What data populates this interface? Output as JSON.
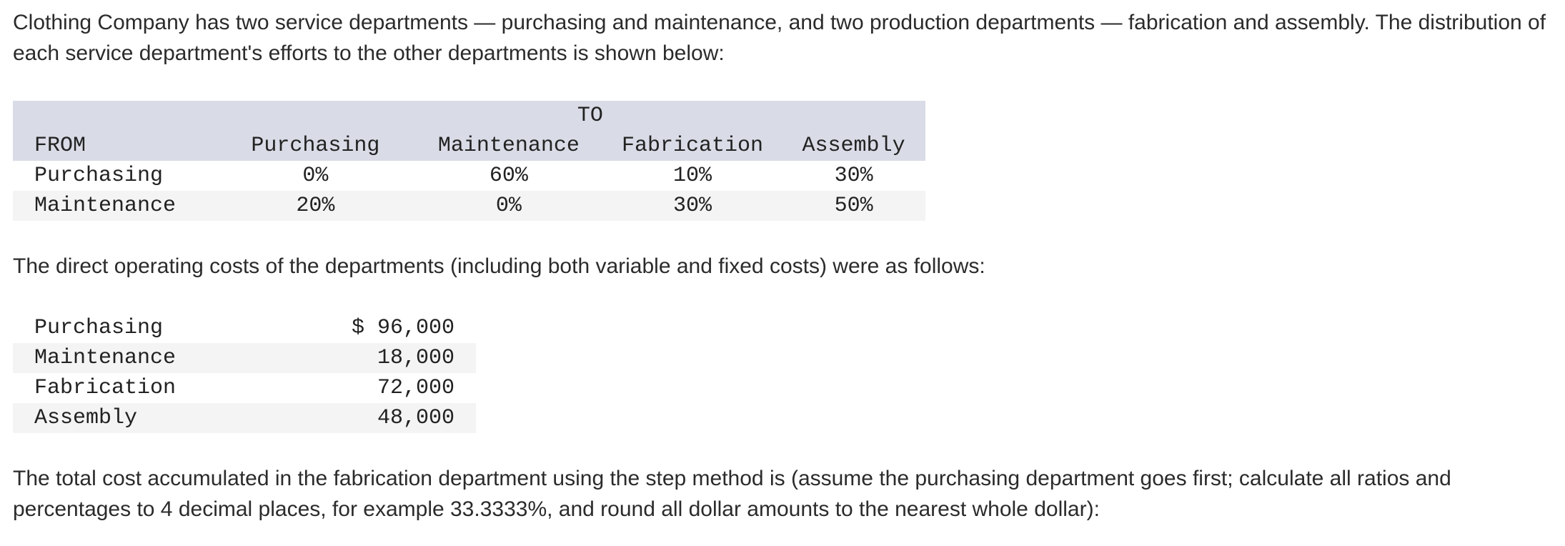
{
  "intro": "Clothing Company has two service departments — purchasing and maintenance, and two production departments — fabrication and assembly. The distribution of each service department's efforts to the other departments is shown below:",
  "distribution": {
    "to_header": "TO",
    "from_header": "FROM",
    "columns": [
      "Purchasing",
      "Maintenance",
      "Fabrication",
      "Assembly"
    ],
    "rows": [
      {
        "label": "Purchasing",
        "values": [
          "0%",
          "60%",
          "10%",
          "30%"
        ]
      },
      {
        "label": "Maintenance",
        "values": [
          "20%",
          "0%",
          "30%",
          "50%"
        ]
      }
    ]
  },
  "costs_intro": "The direct operating costs of the departments (including both variable and fixed costs) were as follows:",
  "costs": [
    {
      "label": "Purchasing",
      "amount": "$ 96,000"
    },
    {
      "label": "Maintenance",
      "amount": "18,000"
    },
    {
      "label": "Fabrication",
      "amount": "72,000"
    },
    {
      "label": "Assembly",
      "amount": "48,000"
    }
  ],
  "question": "The total cost accumulated in the fabrication department using the step method is (assume the purchasing department goes first; calculate all ratios and percentages to 4 decimal places, for example 33.3333%, and round all dollar amounts to the nearest whole dollar):"
}
